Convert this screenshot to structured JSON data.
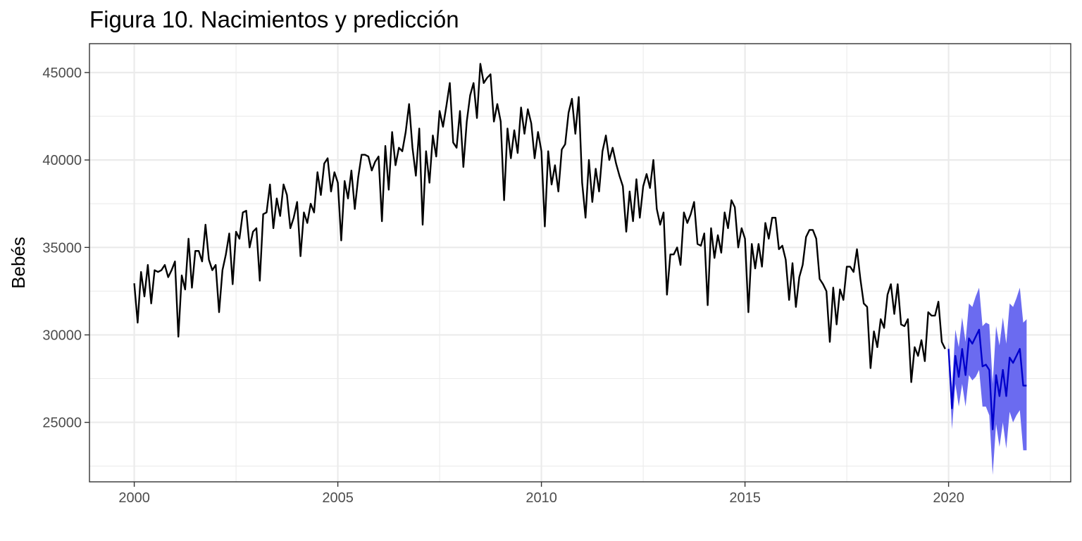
{
  "chart_data": {
    "type": "line",
    "title": "Figura 10. Nacimientos y predicción",
    "xlabel": "",
    "ylabel": "Bebés",
    "xlim": [
      1998.9,
      2023.0
    ],
    "ylim": [
      21600,
      46650
    ],
    "x_ticks": [
      2000,
      2005,
      2010,
      2015,
      2020
    ],
    "x_tick_labels": [
      "2000",
      "2005",
      "2010",
      "2015",
      "2020"
    ],
    "y_ticks": [
      25000,
      30000,
      35000,
      40000,
      45000
    ],
    "y_tick_labels": [
      "25000",
      "30000",
      "35000",
      "40000",
      "45000"
    ],
    "grid": true,
    "colors": {
      "history": "#000000",
      "forecast": "#0000cc",
      "interval": "#6b6bf0"
    },
    "series": [
      {
        "start": "2000-01",
        "frequency": "monthly",
        "values": [
          32950,
          30700,
          33600,
          32200,
          34000,
          31800,
          33700,
          33600,
          33700,
          34000,
          33300,
          33700,
          34200,
          29900,
          33400,
          32600,
          35500,
          32700,
          34800,
          34800,
          34200,
          36300,
          34300,
          33700,
          34000,
          31300,
          33700,
          34600,
          35800,
          32900,
          35900,
          35500,
          37000,
          37100,
          35000,
          35900,
          36100,
          33100,
          36900,
          37000,
          38600,
          36100,
          37800,
          36800,
          38600,
          38000,
          36100,
          36700,
          37600,
          34500,
          37000,
          36400,
          37500,
          37000,
          39300,
          38000,
          39800,
          40100,
          38200,
          39300,
          38700,
          35400,
          38800,
          37800,
          39400,
          37200,
          39000,
          40300,
          40300,
          40200,
          39400,
          39900,
          40200,
          36500,
          40800,
          38300,
          41600,
          39700,
          40700,
          40500,
          41600,
          43200,
          40700,
          39100,
          41800,
          36300,
          40500,
          38700,
          41400,
          40200,
          42800,
          41900,
          43100,
          44400,
          41000,
          40700,
          42800,
          39600,
          42200,
          43700,
          44400,
          42400,
          45500,
          44400,
          44700,
          44900,
          42200,
          43200,
          42200,
          37700,
          41800,
          40100,
          41700,
          40400,
          43000,
          41500,
          42900,
          42100,
          40100,
          41600,
          40500,
          36200,
          40500,
          38600,
          39700,
          38200,
          40600,
          40900,
          42700,
          43500,
          41500,
          43600,
          38700,
          36700,
          40000,
          37600,
          39500,
          38200,
          40500,
          41400,
          40000,
          40700,
          39800,
          39100,
          38500,
          35900,
          38200,
          36500,
          38900,
          36700,
          38500,
          39200,
          38400,
          40000,
          37200,
          36300,
          37000,
          32300,
          34600,
          34600,
          35000,
          34000,
          37000,
          36400,
          36900,
          37600,
          35200,
          35100,
          35800,
          31700,
          36100,
          34400,
          35700,
          34700,
          37000,
          36100,
          37700,
          37300,
          35000,
          36100,
          35500,
          31300,
          35200,
          33800,
          35200,
          33900,
          36400,
          35500,
          36700,
          36700,
          34900,
          35100,
          34300,
          32000,
          34100,
          31600,
          33300,
          34000,
          35600,
          36000,
          36000,
          35500,
          33200,
          32900,
          32500,
          29600,
          32700,
          30600,
          32600,
          32000,
          33900,
          33900,
          33600,
          34900,
          33200,
          31800,
          31600,
          28100,
          30200,
          29300,
          30900,
          30400,
          32300,
          32900,
          31200,
          32900,
          30600,
          30500,
          30900,
          27300,
          29300,
          28800,
          29700,
          28500,
          31300,
          31100,
          31100,
          31900,
          29600,
          29200
        ]
      },
      {
        "start": "2020-01",
        "frequency": "monthly",
        "values": [
          29200,
          25800,
          28800,
          27600,
          29200,
          27700,
          29800,
          29500,
          29900,
          30300,
          28200,
          28300,
          28000,
          24600,
          27700,
          26500,
          28000,
          26500,
          28700,
          28400,
          28800,
          29200,
          27100,
          27100
        ],
        "lower": [
          28800,
          24600,
          27200,
          25900,
          27200,
          25900,
          27700,
          27400,
          27600,
          28000,
          25900,
          25900,
          25400,
          22000,
          24900,
          23600,
          25000,
          23500,
          25600,
          25000,
          25400,
          25700,
          23400,
          23400
        ],
        "upper": [
          29600,
          27000,
          30300,
          29300,
          31000,
          29600,
          31800,
          31600,
          32200,
          32700,
          30500,
          30700,
          30600,
          27200,
          30500,
          29400,
          31000,
          29500,
          31800,
          31600,
          32100,
          32700,
          30700,
          30900
        ]
      }
    ]
  }
}
